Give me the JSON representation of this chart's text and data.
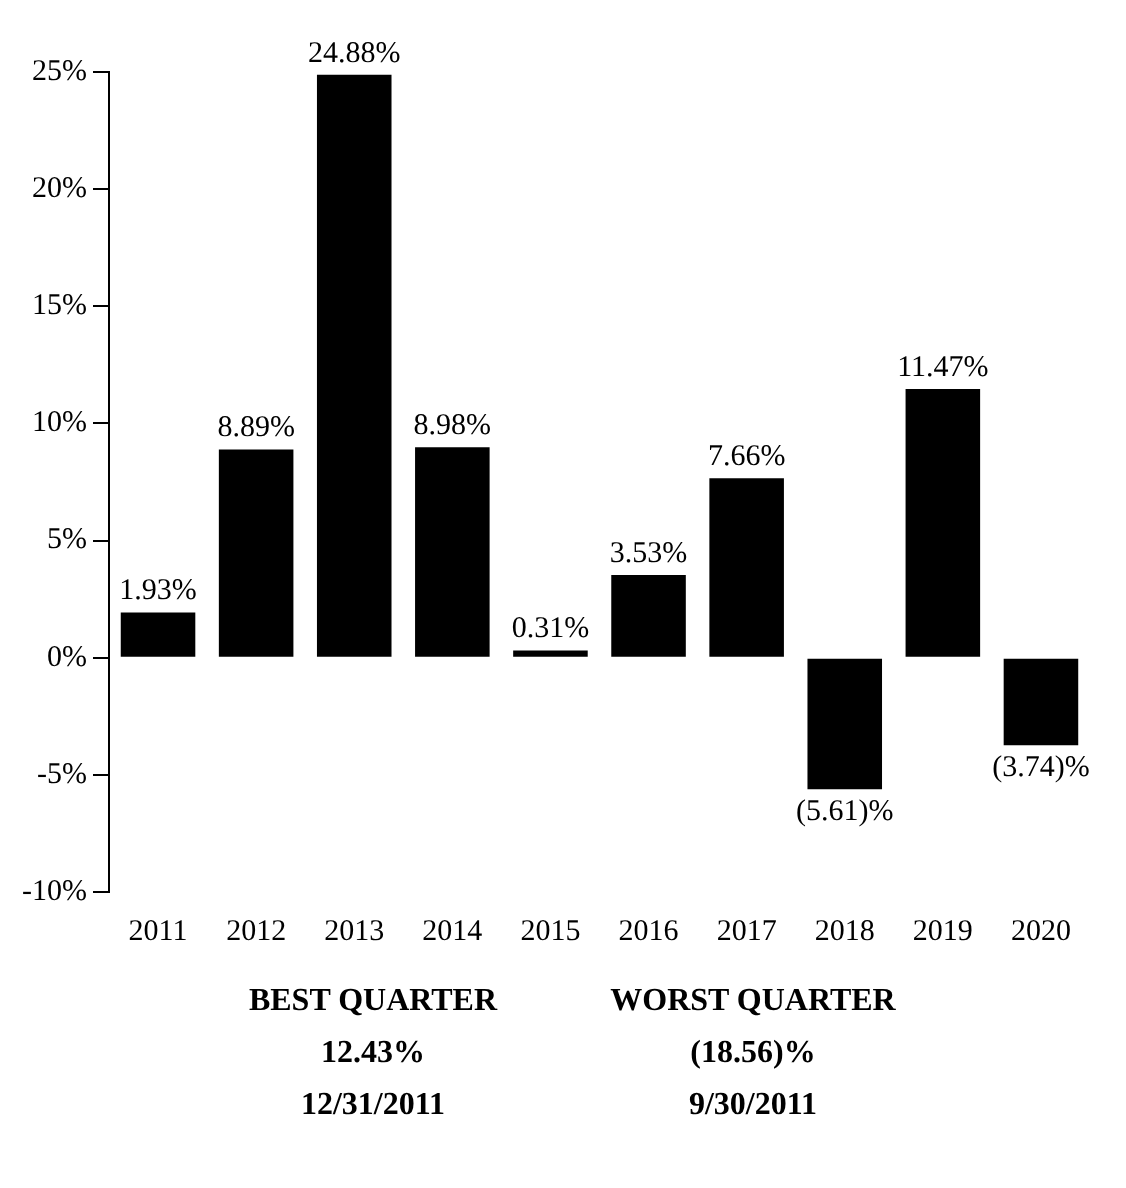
{
  "chart_data": {
    "type": "bar",
    "categories": [
      "2011",
      "2012",
      "2013",
      "2014",
      "2015",
      "2016",
      "2017",
      "2018",
      "2019",
      "2020"
    ],
    "values": [
      1.93,
      8.89,
      24.88,
      8.98,
      0.31,
      3.53,
      7.66,
      -5.61,
      11.47,
      -3.74
    ],
    "value_labels": [
      "1.93%",
      "8.89%",
      "24.88%",
      "8.98%",
      "0.31%",
      "3.53%",
      "7.66%",
      "(5.61)%",
      "11.47%",
      "(3.74)%"
    ],
    "color": "#000000",
    "ylim": [
      -10,
      25
    ],
    "yticks": [
      {
        "value": -10,
        "label": "-10%"
      },
      {
        "value": -5,
        "label": "-5%"
      },
      {
        "value": 0,
        "label": "0%"
      },
      {
        "value": 5,
        "label": "5%"
      },
      {
        "value": 10,
        "label": "10%"
      },
      {
        "value": 15,
        "label": "15%"
      },
      {
        "value": 20,
        "label": "20%"
      },
      {
        "value": 25,
        "label": "25%"
      }
    ],
    "grid": false,
    "legend": false,
    "annotations": [
      "BEST QUARTER",
      "WORST QUARTER",
      "12.43%",
      "(18.56)%",
      "12/31/2011",
      "9/30/2011"
    ]
  }
}
